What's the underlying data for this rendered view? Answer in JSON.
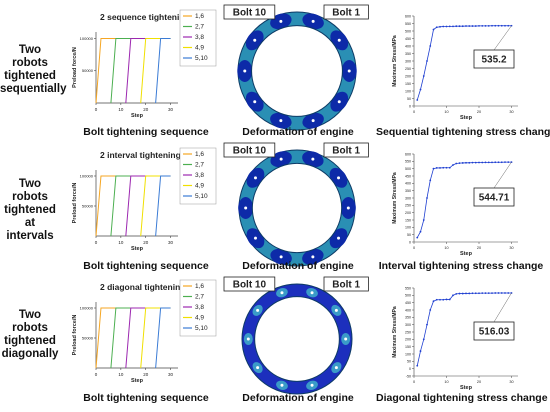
{
  "rows": [
    {
      "label": [
        "Two robots",
        "tightened",
        "sequentially"
      ],
      "seq_title": "2 sequence tightening",
      "seq_caption": "Bolt tightening sequence",
      "engine_caption": "Deformation of engine",
      "stress_caption": "Sequential tightening stress change",
      "stress_value": "535.2",
      "ring_style": "mixed",
      "bolt_left": "Bolt 10",
      "bolt_right": "Bolt 1"
    },
    {
      "label": [
        "Two robots",
        "tightened at",
        "intervals"
      ],
      "seq_title": "2 interval tightening",
      "seq_caption": "Bolt tightening sequence",
      "engine_caption": "Deformation of engine",
      "stress_caption": "Interval tightening stress change",
      "stress_value": "544.71",
      "ring_style": "mixed",
      "bolt_left": "Bolt 10",
      "bolt_right": "Bolt 1"
    },
    {
      "label": [
        "Two robots",
        "tightened",
        "diagonally"
      ],
      "seq_title": "2 diagonal tightening",
      "seq_caption": "Bolt tightening sequence",
      "engine_caption": "Deformation of engine",
      "stress_caption": "Diagonal tightening stress change",
      "stress_value": "516.03",
      "ring_style": "blue",
      "bolt_left": "Bolt 10",
      "bolt_right": "Bolt 1"
    }
  ],
  "legend": [
    "1,6",
    "2,7",
    "3,8",
    "4,9",
    "5,10"
  ],
  "legend_colors": [
    "#f5a623",
    "#4caf50",
    "#9c27b0",
    "#f0e000",
    "#3a7bd5"
  ],
  "chart_data": [
    {
      "type": "line",
      "xlabel": "Step",
      "ylabel": "Preload force/N",
      "xlim": [
        0,
        33
      ],
      "ylim": [
        0,
        110000
      ],
      "x_ticks": [
        0,
        10,
        20,
        30
      ],
      "y_ticks": [
        50000,
        100000
      ],
      "series": [
        {
          "name": "1,6",
          "x": [
            0,
            2,
            30
          ],
          "y": [
            0,
            100000,
            100000
          ]
        },
        {
          "name": "2,7",
          "x": [
            6,
            8,
            30
          ],
          "y": [
            0,
            100000,
            100000
          ]
        },
        {
          "name": "3,8",
          "x": [
            12,
            14,
            30
          ],
          "y": [
            0,
            100000,
            100000
          ]
        },
        {
          "name": "4,9",
          "x": [
            18,
            20,
            30
          ],
          "y": [
            0,
            100000,
            100000
          ]
        },
        {
          "name": "5,10",
          "x": [
            24,
            26,
            30
          ],
          "y": [
            0,
            100000,
            100000
          ]
        }
      ]
    },
    {
      "type": "line",
      "xlabel": "Step",
      "ylabel": "Preload force/N",
      "xlim": [
        0,
        33
      ],
      "ylim": [
        0,
        110000
      ],
      "x_ticks": [
        0,
        10,
        20,
        30
      ],
      "y_ticks": [
        50000,
        100000
      ],
      "series": [
        {
          "name": "1,6",
          "x": [
            0,
            2,
            30
          ],
          "y": [
            0,
            100000,
            100000
          ]
        },
        {
          "name": "2,7",
          "x": [
            6,
            8,
            30
          ],
          "y": [
            0,
            100000,
            100000
          ]
        },
        {
          "name": "3,8",
          "x": [
            12,
            14,
            30
          ],
          "y": [
            0,
            100000,
            100000
          ]
        },
        {
          "name": "4,9",
          "x": [
            18,
            20,
            30
          ],
          "y": [
            0,
            100000,
            100000
          ]
        },
        {
          "name": "5,10",
          "x": [
            24,
            26,
            30
          ],
          "y": [
            0,
            100000,
            100000
          ]
        }
      ]
    },
    {
      "type": "line",
      "xlabel": "Step",
      "ylabel": "Preload force/N",
      "xlim": [
        0,
        33
      ],
      "ylim": [
        0,
        110000
      ],
      "x_ticks": [
        0,
        10,
        20,
        30
      ],
      "y_ticks": [
        50000,
        100000
      ],
      "series": [
        {
          "name": "1,6",
          "x": [
            0,
            2,
            30
          ],
          "y": [
            0,
            100000,
            100000
          ]
        },
        {
          "name": "2,7",
          "x": [
            6,
            8,
            30
          ],
          "y": [
            0,
            100000,
            100000
          ]
        },
        {
          "name": "3,8",
          "x": [
            12,
            14,
            30
          ],
          "y": [
            0,
            100000,
            100000
          ]
        },
        {
          "name": "4,9",
          "x": [
            18,
            20,
            30
          ],
          "y": [
            0,
            100000,
            100000
          ]
        },
        {
          "name": "5,10",
          "x": [
            24,
            26,
            30
          ],
          "y": [
            0,
            100000,
            100000
          ]
        }
      ]
    },
    {
      "type": "line",
      "xlabel": "Step",
      "ylabel": "Maximum Stress/MPa",
      "xlim": [
        0,
        32
      ],
      "ylim": [
        0,
        600
      ],
      "x_ticks": [
        0,
        10,
        20,
        30
      ],
      "y_ticks": [
        0,
        50,
        100,
        150,
        200,
        250,
        300,
        350,
        400,
        450,
        500,
        550,
        600
      ],
      "series": [
        {
          "x": [
            1,
            2,
            3,
            4,
            5,
            6,
            7,
            8,
            9,
            10,
            11,
            12,
            13,
            14,
            15,
            16,
            17,
            18,
            19,
            20,
            21,
            22,
            23,
            24,
            25,
            26,
            27,
            28,
            29,
            30
          ],
          "y": [
            40,
            110,
            200,
            300,
            400,
            510,
            525,
            528,
            530,
            530,
            531,
            531,
            532,
            532,
            532,
            533,
            533,
            533,
            533,
            534,
            534,
            534,
            534,
            535,
            535,
            535,
            535,
            535,
            535.2,
            535.2
          ]
        }
      ]
    },
    {
      "type": "line",
      "xlabel": "Step",
      "ylabel": "Maximum Stress/MPa",
      "xlim": [
        0,
        32
      ],
      "ylim": [
        0,
        600
      ],
      "x_ticks": [
        0,
        10,
        20,
        30
      ],
      "y_ticks": [
        0,
        50,
        100,
        150,
        200,
        250,
        300,
        350,
        400,
        450,
        500,
        550,
        600
      ],
      "series": [
        {
          "x": [
            1,
            2,
            3,
            4,
            5,
            6,
            7,
            8,
            9,
            10,
            11,
            12,
            13,
            14,
            15,
            16,
            17,
            18,
            19,
            20,
            21,
            22,
            23,
            24,
            25,
            26,
            27,
            28,
            29,
            30
          ],
          "y": [
            30,
            70,
            150,
            300,
            420,
            500,
            505,
            505,
            506,
            506,
            506,
            525,
            535,
            538,
            539,
            540,
            540,
            541,
            541,
            542,
            542,
            543,
            543,
            543,
            544,
            544,
            544,
            544.5,
            544.7,
            544.71
          ]
        }
      ]
    },
    {
      "type": "line",
      "xlabel": "Step",
      "ylabel": "Maximum Stress/MPa",
      "xlim": [
        0,
        32
      ],
      "ylim": [
        -50,
        550
      ],
      "x_ticks": [
        0,
        10,
        20,
        30
      ],
      "y_ticks": [
        -50,
        0,
        50,
        100,
        150,
        200,
        250,
        300,
        350,
        400,
        450,
        500,
        550
      ],
      "series": [
        {
          "x": [
            1,
            2,
            3,
            4,
            5,
            6,
            7,
            8,
            9,
            10,
            11,
            12,
            13,
            14,
            15,
            16,
            17,
            18,
            19,
            20,
            21,
            22,
            23,
            24,
            25,
            26,
            27,
            28,
            29,
            30
          ],
          "y": [
            20,
            120,
            200,
            300,
            400,
            460,
            470,
            470,
            470,
            472,
            472,
            500,
            510,
            512,
            512,
            513,
            513,
            514,
            514,
            514,
            515,
            515,
            515,
            515,
            516,
            516,
            516,
            516,
            516.03,
            516.03
          ]
        }
      ]
    }
  ]
}
